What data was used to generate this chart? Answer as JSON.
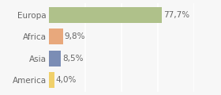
{
  "categories": [
    "Europa",
    "Africa",
    "Asia",
    "America"
  ],
  "values": [
    77.7,
    9.8,
    8.5,
    4.0
  ],
  "labels": [
    "77,7%",
    "9,8%",
    "8,5%",
    "4,0%"
  ],
  "bar_colors": [
    "#afc18a",
    "#e8a87c",
    "#7b8db5",
    "#f0d06a"
  ],
  "background_color": "#f7f7f7",
  "xlim": [
    0,
    100
  ],
  "label_fontsize": 7.5,
  "tick_fontsize": 7.5,
  "bar_height": 0.72,
  "grid_color": "#ffffff",
  "grid_lw": 1.2,
  "text_color": "#666666"
}
